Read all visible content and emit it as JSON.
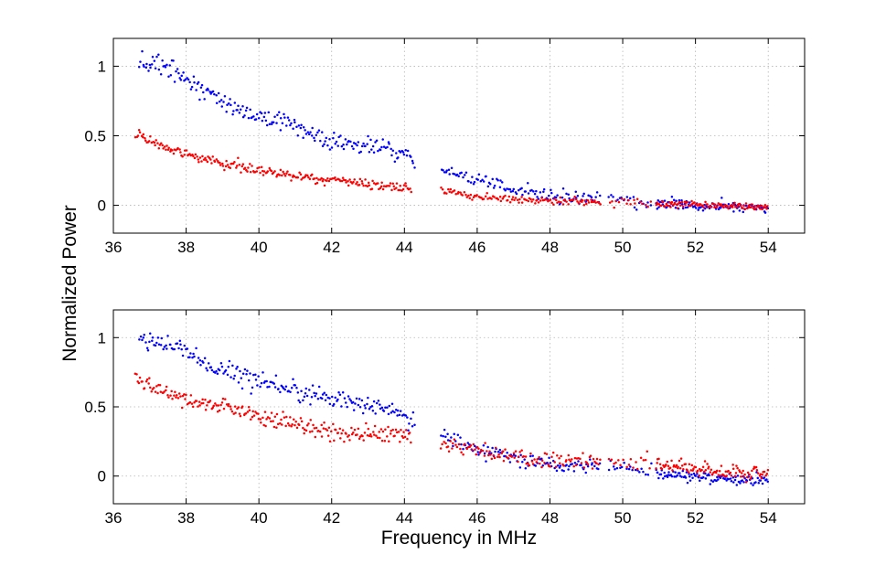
{
  "chart_data": {
    "type": "scatter",
    "xlabel": "Frequency in MHz",
    "ylabel": "Normalized Power",
    "colors": {
      "blue": "#0000ff",
      "red": "#ff0000"
    },
    "panels": [
      {
        "id": "top",
        "xlim": [
          36,
          55
        ],
        "ylim": [
          -0.2,
          1.2
        ],
        "xticks": [
          36,
          38,
          40,
          42,
          44,
          46,
          48,
          50,
          52,
          54
        ],
        "xtick_labels": [
          "36",
          "38",
          "40",
          "42",
          "44",
          "46",
          "48",
          "50",
          "52",
          "54"
        ],
        "yticks": [
          0,
          0.5,
          1
        ],
        "ytick_labels": [
          "0",
          "0.5",
          "1"
        ],
        "grid": true,
        "series": [
          {
            "name": "blue",
            "color": "#0000ff",
            "segments": [
              {
                "x_start": 36.7,
                "x_end": 44.3,
                "anchors": [
                  [
                    36.7,
                    1.03
                  ],
                  [
                    37.5,
                    1.0
                  ],
                  [
                    38.5,
                    0.82
                  ],
                  [
                    40,
                    0.63
                  ],
                  [
                    41,
                    0.58
                  ],
                  [
                    42,
                    0.46
                  ],
                  [
                    43.5,
                    0.42
                  ],
                  [
                    44.3,
                    0.32
                  ]
                ],
                "noise": 0.035,
                "count": 220
              },
              {
                "x_start": 45,
                "x_end": 49.4,
                "anchors": [
                  [
                    45,
                    0.26
                  ],
                  [
                    46,
                    0.18
                  ],
                  [
                    47,
                    0.12
                  ],
                  [
                    48,
                    0.07
                  ],
                  [
                    49.4,
                    0.05
                  ]
                ],
                "noise": 0.025,
                "count": 110
              },
              {
                "x_start": 49.6,
                "x_end": 50.8,
                "anchors": [
                  [
                    49.6,
                    0.06
                  ],
                  [
                    50.8,
                    0.0
                  ]
                ],
                "noise": 0.02,
                "count": 20
              },
              {
                "x_start": 50.9,
                "x_end": 54,
                "anchors": [
                  [
                    50.9,
                    0.02
                  ],
                  [
                    52,
                    0.0
                  ],
                  [
                    54,
                    -0.02
                  ]
                ],
                "noise": 0.02,
                "count": 110
              }
            ]
          },
          {
            "name": "red",
            "color": "#ff0000",
            "segments": [
              {
                "x_start": 36.6,
                "x_end": 44.2,
                "anchors": [
                  [
                    36.6,
                    0.52
                  ],
                  [
                    37.5,
                    0.4
                  ],
                  [
                    39,
                    0.3
                  ],
                  [
                    40.5,
                    0.23
                  ],
                  [
                    42,
                    0.18
                  ],
                  [
                    43.5,
                    0.14
                  ],
                  [
                    44.2,
                    0.12
                  ]
                ],
                "noise": 0.018,
                "count": 240
              },
              {
                "x_start": 45,
                "x_end": 49.4,
                "anchors": [
                  [
                    45,
                    0.1
                  ],
                  [
                    46,
                    0.06
                  ],
                  [
                    48,
                    0.03
                  ],
                  [
                    49.4,
                    0.03
                  ]
                ],
                "noise": 0.012,
                "count": 120
              },
              {
                "x_start": 49.6,
                "x_end": 50.8,
                "anchors": [
                  [
                    49.6,
                    0.03
                  ],
                  [
                    50.8,
                    0.01
                  ]
                ],
                "noise": 0.012,
                "count": 18
              },
              {
                "x_start": 50.9,
                "x_end": 54,
                "anchors": [
                  [
                    50.9,
                    0.01
                  ],
                  [
                    52,
                    0.01
                  ],
                  [
                    54,
                    -0.01
                  ]
                ],
                "noise": 0.012,
                "count": 110
              }
            ]
          }
        ]
      },
      {
        "id": "bottom",
        "xlim": [
          36,
          55
        ],
        "ylim": [
          -0.2,
          1.2
        ],
        "xticks": [
          36,
          38,
          40,
          42,
          44,
          46,
          48,
          50,
          52,
          54
        ],
        "xtick_labels": [
          "36",
          "38",
          "40",
          "42",
          "44",
          "46",
          "48",
          "50",
          "52",
          "54"
        ],
        "yticks": [
          0,
          0.5,
          1
        ],
        "ytick_labels": [
          "0",
          "0.5",
          "1"
        ],
        "grid": true,
        "series": [
          {
            "name": "blue",
            "color": "#0000ff",
            "segments": [
              {
                "x_start": 36.7,
                "x_end": 44.3,
                "anchors": [
                  [
                    36.7,
                    0.98
                  ],
                  [
                    37.5,
                    0.97
                  ],
                  [
                    38.5,
                    0.82
                  ],
                  [
                    40,
                    0.68
                  ],
                  [
                    41,
                    0.63
                  ],
                  [
                    42,
                    0.55
                  ],
                  [
                    43.5,
                    0.5
                  ],
                  [
                    44.3,
                    0.38
                  ]
                ],
                "noise": 0.035,
                "count": 220
              },
              {
                "x_start": 45,
                "x_end": 49.4,
                "anchors": [
                  [
                    45,
                    0.3
                  ],
                  [
                    46,
                    0.2
                  ],
                  [
                    47,
                    0.13
                  ],
                  [
                    48,
                    0.08
                  ],
                  [
                    49.4,
                    0.07
                  ]
                ],
                "noise": 0.03,
                "count": 110
              },
              {
                "x_start": 49.6,
                "x_end": 50.8,
                "anchors": [
                  [
                    49.6,
                    0.08
                  ],
                  [
                    50.8,
                    0.03
                  ]
                ],
                "noise": 0.025,
                "count": 20
              },
              {
                "x_start": 50.9,
                "x_end": 54,
                "anchors": [
                  [
                    50.9,
                    0.02
                  ],
                  [
                    52,
                    -0.01
                  ],
                  [
                    54,
                    -0.03
                  ]
                ],
                "noise": 0.02,
                "count": 110
              }
            ]
          },
          {
            "name": "red",
            "color": "#ff0000",
            "segments": [
              {
                "x_start": 36.6,
                "x_end": 44.2,
                "anchors": [
                  [
                    36.6,
                    0.72
                  ],
                  [
                    37.5,
                    0.58
                  ],
                  [
                    39,
                    0.5
                  ],
                  [
                    40.5,
                    0.4
                  ],
                  [
                    42,
                    0.32
                  ],
                  [
                    43.5,
                    0.3
                  ],
                  [
                    44.2,
                    0.3
                  ]
                ],
                "noise": 0.03,
                "count": 240
              },
              {
                "x_start": 45,
                "x_end": 49.4,
                "anchors": [
                  [
                    45,
                    0.25
                  ],
                  [
                    46,
                    0.18
                  ],
                  [
                    47,
                    0.15
                  ],
                  [
                    48,
                    0.12
                  ],
                  [
                    49.4,
                    0.1
                  ]
                ],
                "noise": 0.03,
                "count": 120
              },
              {
                "x_start": 49.6,
                "x_end": 50.8,
                "anchors": [
                  [
                    49.6,
                    0.12
                  ],
                  [
                    50.8,
                    0.08
                  ]
                ],
                "noise": 0.03,
                "count": 18
              },
              {
                "x_start": 50.9,
                "x_end": 54,
                "anchors": [
                  [
                    50.9,
                    0.07
                  ],
                  [
                    51.5,
                    0.08
                  ],
                  [
                    52.5,
                    0.03
                  ],
                  [
                    54,
                    0.02
                  ]
                ],
                "noise": 0.025,
                "count": 110
              }
            ]
          }
        ]
      }
    ]
  }
}
